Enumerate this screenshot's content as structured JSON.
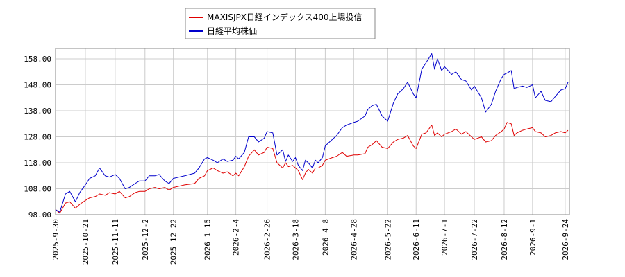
{
  "chart_data": {
    "type": "line",
    "title": "",
    "xlabel": "",
    "ylabel": "",
    "ylim": [
      98,
      162
    ],
    "xlim": [
      "2025-09-30",
      "2026-09-27"
    ],
    "y_ticks": [
      "98.00",
      "108.00",
      "118.00",
      "128.00",
      "138.00",
      "148.00",
      "158.00"
    ],
    "x_ticks": [
      "2025-9-30",
      "2025-10-21",
      "2025-11-11",
      "2025-12-2",
      "2025-12-22",
      "2026-1-15",
      "2026-2-4",
      "2026-2-26",
      "2026-3-18",
      "2026-4-8",
      "2026-4-28",
      "2026-5-22",
      "2026-6-11",
      "2026-7-1",
      "2026-7-22",
      "2026-8-12",
      "2026-9-1",
      "2026-9-24"
    ],
    "grid": true,
    "legend_position": "top",
    "series": [
      {
        "name": "MAXISJPX日経インデックス400上場投信",
        "color": "#e00000",
        "points": [
          [
            "2025-09-30",
            100.0
          ],
          [
            "2025-10-03",
            98.6
          ],
          [
            "2025-10-07",
            102.5
          ],
          [
            "2025-10-10",
            103.0
          ],
          [
            "2025-10-14",
            100.5
          ],
          [
            "2025-10-17",
            102.0
          ],
          [
            "2025-10-21",
            103.5
          ],
          [
            "2025-10-24",
            104.5
          ],
          [
            "2025-10-28",
            105.0
          ],
          [
            "2025-10-31",
            106.0
          ],
          [
            "2025-11-04",
            105.5
          ],
          [
            "2025-11-07",
            106.5
          ],
          [
            "2025-11-11",
            106.0
          ],
          [
            "2025-11-14",
            107.0
          ],
          [
            "2025-11-18",
            104.5
          ],
          [
            "2025-11-21",
            105.0
          ],
          [
            "2025-11-25",
            106.5
          ],
          [
            "2025-11-28",
            107.0
          ],
          [
            "2025-12-02",
            107.0
          ],
          [
            "2025-12-05",
            108.0
          ],
          [
            "2025-12-09",
            108.5
          ],
          [
            "2025-12-12",
            108.0
          ],
          [
            "2025-12-16",
            108.5
          ],
          [
            "2025-12-19",
            107.5
          ],
          [
            "2025-12-22",
            108.5
          ],
          [
            "2025-12-26",
            109.0
          ],
          [
            "2025-12-30",
            109.5
          ],
          [
            "2026-01-06",
            110.0
          ],
          [
            "2026-01-09",
            112.0
          ],
          [
            "2026-01-13",
            113.0
          ],
          [
            "2026-01-15",
            115.0
          ],
          [
            "2026-01-19",
            116.0
          ],
          [
            "2026-01-22",
            115.0
          ],
          [
            "2026-01-26",
            114.0
          ],
          [
            "2026-01-29",
            114.5
          ],
          [
            "2026-02-02",
            113.0
          ],
          [
            "2026-02-04",
            114.0
          ],
          [
            "2026-02-06",
            113.0
          ],
          [
            "2026-02-10",
            116.5
          ],
          [
            "2026-02-13",
            120.5
          ],
          [
            "2026-02-17",
            123.0
          ],
          [
            "2026-02-20",
            121.0
          ],
          [
            "2026-02-24",
            122.0
          ],
          [
            "2026-02-26",
            124.0
          ],
          [
            "2026-03-02",
            123.5
          ],
          [
            "2026-03-05",
            118.0
          ],
          [
            "2026-03-09",
            116.0
          ],
          [
            "2026-03-11",
            118.0
          ],
          [
            "2026-03-13",
            116.5
          ],
          [
            "2026-03-16",
            117.0
          ],
          [
            "2026-03-18",
            116.0
          ],
          [
            "2026-03-20",
            115.0
          ],
          [
            "2026-03-23",
            111.5
          ],
          [
            "2026-03-25",
            114.0
          ],
          [
            "2026-03-27",
            115.5
          ],
          [
            "2026-03-30",
            114.0
          ],
          [
            "2026-04-01",
            116.0
          ],
          [
            "2026-04-03",
            116.0
          ],
          [
            "2026-04-06",
            117.0
          ],
          [
            "2026-04-08",
            119.0
          ],
          [
            "2026-04-13",
            120.0
          ],
          [
            "2026-04-16",
            120.5
          ],
          [
            "2026-04-20",
            122.0
          ],
          [
            "2026-04-23",
            120.5
          ],
          [
            "2026-04-28",
            121.0
          ],
          [
            "2026-05-01",
            121.0
          ],
          [
            "2026-05-06",
            121.5
          ],
          [
            "2026-05-08",
            124.0
          ],
          [
            "2026-05-11",
            125.0
          ],
          [
            "2026-05-14",
            126.5
          ],
          [
            "2026-05-18",
            124.0
          ],
          [
            "2026-05-22",
            123.5
          ],
          [
            "2026-05-26",
            126.0
          ],
          [
            "2026-05-29",
            127.0
          ],
          [
            "2026-06-02",
            127.5
          ],
          [
            "2026-06-05",
            128.5
          ],
          [
            "2026-06-09",
            124.5
          ],
          [
            "2026-06-11",
            123.5
          ],
          [
            "2026-06-15",
            129.0
          ],
          [
            "2026-06-18",
            129.5
          ],
          [
            "2026-06-22",
            132.5
          ],
          [
            "2026-06-24",
            128.5
          ],
          [
            "2026-06-26",
            129.5
          ],
          [
            "2026-06-29",
            128.0
          ],
          [
            "2026-07-01",
            129.0
          ],
          [
            "2026-07-06",
            130.0
          ],
          [
            "2026-07-09",
            131.0
          ],
          [
            "2026-07-13",
            129.0
          ],
          [
            "2026-07-16",
            130.0
          ],
          [
            "2026-07-20",
            128.0
          ],
          [
            "2026-07-22",
            127.0
          ],
          [
            "2026-07-27",
            128.0
          ],
          [
            "2026-07-30",
            126.0
          ],
          [
            "2026-08-03",
            126.5
          ],
          [
            "2026-08-06",
            128.5
          ],
          [
            "2026-08-10",
            130.0
          ],
          [
            "2026-08-12",
            131.0
          ],
          [
            "2026-08-14",
            133.5
          ],
          [
            "2026-08-17",
            133.0
          ],
          [
            "2026-08-19",
            128.5
          ],
          [
            "2026-08-21",
            129.5
          ],
          [
            "2026-08-25",
            130.5
          ],
          [
            "2026-08-28",
            131.0
          ],
          [
            "2026-09-01",
            131.5
          ],
          [
            "2026-09-03",
            130.0
          ],
          [
            "2026-09-07",
            129.5
          ],
          [
            "2026-09-10",
            128.0
          ],
          [
            "2026-09-14",
            128.5
          ],
          [
            "2026-09-17",
            129.5
          ],
          [
            "2026-09-21",
            130.0
          ],
          [
            "2026-09-24",
            129.5
          ],
          [
            "2026-09-26",
            130.5
          ]
        ]
      },
      {
        "name": "日経平均株価",
        "color": "#0000cc",
        "points": [
          [
            "2025-09-30",
            100.0
          ],
          [
            "2025-10-03",
            99.0
          ],
          [
            "2025-10-07",
            106.0
          ],
          [
            "2025-10-10",
            107.0
          ],
          [
            "2025-10-14",
            103.0
          ],
          [
            "2025-10-17",
            106.5
          ],
          [
            "2025-10-21",
            109.5
          ],
          [
            "2025-10-24",
            112.0
          ],
          [
            "2025-10-28",
            113.0
          ],
          [
            "2025-10-31",
            116.0
          ],
          [
            "2025-11-04",
            113.0
          ],
          [
            "2025-11-07",
            112.5
          ],
          [
            "2025-11-11",
            113.5
          ],
          [
            "2025-11-14",
            112.0
          ],
          [
            "2025-11-18",
            108.0
          ],
          [
            "2025-11-21",
            108.5
          ],
          [
            "2025-11-25",
            110.0
          ],
          [
            "2025-11-28",
            111.0
          ],
          [
            "2025-12-02",
            111.0
          ],
          [
            "2025-12-05",
            113.0
          ],
          [
            "2025-12-09",
            113.0
          ],
          [
            "2025-12-12",
            113.5
          ],
          [
            "2025-12-16",
            111.0
          ],
          [
            "2025-12-19",
            110.0
          ],
          [
            "2025-12-22",
            112.0
          ],
          [
            "2025-12-26",
            112.5
          ],
          [
            "2025-12-30",
            113.0
          ],
          [
            "2026-01-06",
            114.0
          ],
          [
            "2026-01-09",
            116.0
          ],
          [
            "2026-01-13",
            119.5
          ],
          [
            "2026-01-15",
            120.0
          ],
          [
            "2026-01-19",
            119.0
          ],
          [
            "2026-01-22",
            118.0
          ],
          [
            "2026-01-26",
            119.5
          ],
          [
            "2026-01-29",
            118.5
          ],
          [
            "2026-02-02",
            119.0
          ],
          [
            "2026-02-04",
            120.5
          ],
          [
            "2026-02-06",
            119.5
          ],
          [
            "2026-02-10",
            122.0
          ],
          [
            "2026-02-13",
            128.0
          ],
          [
            "2026-02-17",
            128.0
          ],
          [
            "2026-02-20",
            126.0
          ],
          [
            "2026-02-24",
            127.5
          ],
          [
            "2026-02-26",
            130.0
          ],
          [
            "2026-03-02",
            129.5
          ],
          [
            "2026-03-05",
            121.0
          ],
          [
            "2026-03-09",
            123.0
          ],
          [
            "2026-03-11",
            118.5
          ],
          [
            "2026-03-13",
            121.0
          ],
          [
            "2026-03-16",
            118.5
          ],
          [
            "2026-03-18",
            120.0
          ],
          [
            "2026-03-20",
            117.0
          ],
          [
            "2026-03-23",
            115.0
          ],
          [
            "2026-03-25",
            119.0
          ],
          [
            "2026-03-27",
            118.0
          ],
          [
            "2026-03-30",
            116.0
          ],
          [
            "2026-04-01",
            119.0
          ],
          [
            "2026-04-03",
            118.0
          ],
          [
            "2026-04-06",
            120.0
          ],
          [
            "2026-04-08",
            124.5
          ],
          [
            "2026-04-13",
            127.0
          ],
          [
            "2026-04-16",
            128.5
          ],
          [
            "2026-04-20",
            131.5
          ],
          [
            "2026-04-23",
            132.5
          ],
          [
            "2026-04-28",
            133.5
          ],
          [
            "2026-05-01",
            134.0
          ],
          [
            "2026-05-06",
            136.0
          ],
          [
            "2026-05-08",
            138.5
          ],
          [
            "2026-05-11",
            140.0
          ],
          [
            "2026-05-14",
            140.5
          ],
          [
            "2026-05-18",
            136.0
          ],
          [
            "2026-05-22",
            134.0
          ],
          [
            "2026-05-26",
            141.0
          ],
          [
            "2026-05-29",
            144.5
          ],
          [
            "2026-06-02",
            146.5
          ],
          [
            "2026-06-05",
            149.0
          ],
          [
            "2026-06-09",
            144.5
          ],
          [
            "2026-06-11",
            143.0
          ],
          [
            "2026-06-15",
            154.0
          ],
          [
            "2026-06-18",
            156.5
          ],
          [
            "2026-06-22",
            160.0
          ],
          [
            "2026-06-24",
            154.0
          ],
          [
            "2026-06-26",
            158.0
          ],
          [
            "2026-06-29",
            153.5
          ],
          [
            "2026-07-01",
            155.0
          ],
          [
            "2026-07-06",
            152.0
          ],
          [
            "2026-07-09",
            153.0
          ],
          [
            "2026-07-13",
            150.0
          ],
          [
            "2026-07-16",
            149.5
          ],
          [
            "2026-07-20",
            146.0
          ],
          [
            "2026-07-22",
            147.5
          ],
          [
            "2026-07-27",
            143.0
          ],
          [
            "2026-07-30",
            137.5
          ],
          [
            "2026-08-03",
            140.5
          ],
          [
            "2026-08-06",
            145.5
          ],
          [
            "2026-08-10",
            150.5
          ],
          [
            "2026-08-12",
            152.0
          ],
          [
            "2026-08-14",
            152.5
          ],
          [
            "2026-08-17",
            153.5
          ],
          [
            "2026-08-19",
            146.5
          ],
          [
            "2026-08-21",
            147.0
          ],
          [
            "2026-08-25",
            147.5
          ],
          [
            "2026-08-28",
            147.0
          ],
          [
            "2026-09-01",
            148.0
          ],
          [
            "2026-09-03",
            143.0
          ],
          [
            "2026-09-07",
            145.5
          ],
          [
            "2026-09-10",
            142.0
          ],
          [
            "2026-09-14",
            141.5
          ],
          [
            "2026-09-17",
            143.5
          ],
          [
            "2026-09-21",
            146.0
          ],
          [
            "2026-09-24",
            146.5
          ],
          [
            "2026-09-26",
            149.0
          ]
        ]
      }
    ]
  }
}
